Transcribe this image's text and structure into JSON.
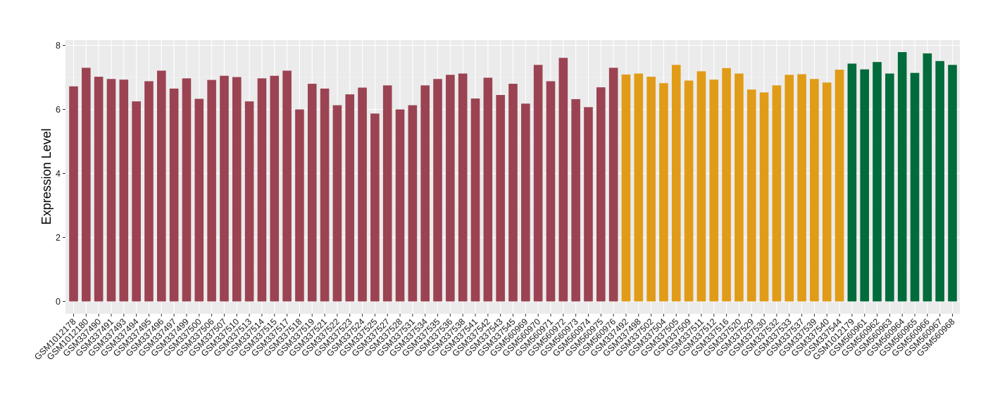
{
  "chart_data": {
    "type": "bar",
    "xlabel": "",
    "ylabel": "Expression Level",
    "ylim": [
      0,
      8.2
    ],
    "yticks": [
      0,
      2,
      4,
      6,
      8
    ],
    "grid": true,
    "legend": "none",
    "panel_background": "#ebebeb",
    "group_colors": [
      "#9b4352",
      "#e09b17",
      "#016b3c"
    ],
    "categories": [
      "GSM1012178",
      "GSM1012180",
      "GSM337490",
      "GSM337491",
      "GSM337493",
      "GSM337494",
      "GSM337495",
      "GSM337496",
      "GSM337497",
      "GSM337499",
      "GSM337500",
      "GSM337506",
      "GSM337507",
      "GSM337510",
      "GSM337513",
      "GSM337514",
      "GSM337515",
      "GSM337517",
      "GSM337518",
      "GSM337519",
      "GSM337521",
      "GSM337522",
      "GSM337523",
      "GSM337524",
      "GSM337525",
      "GSM337527",
      "GSM337528",
      "GSM337531",
      "GSM337534",
      "GSM337535",
      "GSM337536",
      "GSM337538",
      "GSM337541",
      "GSM337542",
      "GSM337543",
      "GSM337545",
      "GSM560969",
      "GSM560970",
      "GSM560971",
      "GSM560972",
      "GSM560973",
      "GSM560974",
      "GSM560975",
      "GSM560976",
      "GSM337492",
      "GSM337498",
      "GSM337502",
      "GSM337504",
      "GSM337505",
      "GSM337509",
      "GSM337511",
      "GSM337512",
      "GSM337516",
      "GSM337520",
      "GSM337529",
      "GSM337530",
      "GSM337532",
      "GSM337533",
      "GSM337537",
      "GSM337539",
      "GSM337540",
      "GSM337544",
      "GSM1012179",
      "GSM560961",
      "GSM560962",
      "GSM560963",
      "GSM560964",
      "GSM560965",
      "GSM560966",
      "GSM560967",
      "GSM560968"
    ],
    "values": [
      6.72,
      7.3,
      7.02,
      6.95,
      6.93,
      6.25,
      6.88,
      7.21,
      6.65,
      6.97,
      6.33,
      6.92,
      7.05,
      7.01,
      6.25,
      6.97,
      7.05,
      7.21,
      6.0,
      6.8,
      6.65,
      6.13,
      6.47,
      6.68,
      5.87,
      6.75,
      6.0,
      6.13,
      6.75,
      6.95,
      7.08,
      7.12,
      6.34,
      6.99,
      6.45,
      6.8,
      6.18,
      7.39,
      6.88,
      7.61,
      6.32,
      6.07,
      6.69,
      7.3,
      7.09,
      7.12,
      7.02,
      6.82,
      7.39,
      6.9,
      7.19,
      6.93,
      7.29,
      7.12,
      6.62,
      6.53,
      6.75,
      7.08,
      7.1,
      6.95,
      6.84,
      7.24,
      7.43,
      7.25,
      7.48,
      7.12,
      7.79,
      7.14,
      7.75,
      7.51,
      7.39
    ],
    "groups": [
      0,
      0,
      0,
      0,
      0,
      0,
      0,
      0,
      0,
      0,
      0,
      0,
      0,
      0,
      0,
      0,
      0,
      0,
      0,
      0,
      0,
      0,
      0,
      0,
      0,
      0,
      0,
      0,
      0,
      0,
      0,
      0,
      0,
      0,
      0,
      0,
      0,
      0,
      0,
      0,
      0,
      0,
      0,
      0,
      1,
      1,
      1,
      1,
      1,
      1,
      1,
      1,
      1,
      1,
      1,
      1,
      1,
      1,
      1,
      1,
      1,
      1,
      2,
      2,
      2,
      2,
      2,
      2,
      2,
      2,
      2
    ]
  }
}
